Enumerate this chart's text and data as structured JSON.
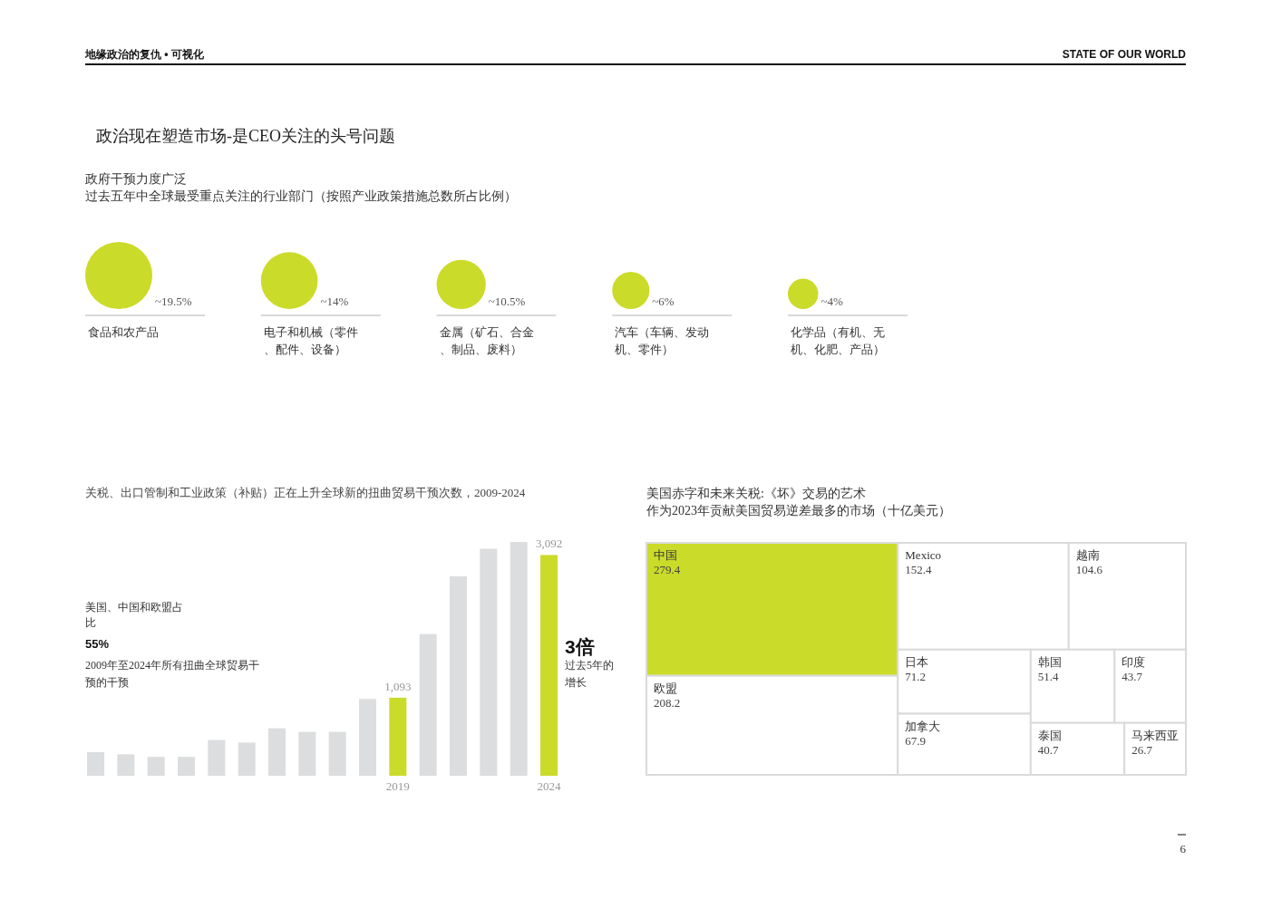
{
  "chart_data": [
    {
      "type": "other",
      "title": "政府干预力度广泛",
      "subtitle": "过去五年中全球最受重点关注的行业部门（按照产业政策措施总数所占比例）",
      "annotations": [
        "地缘政治的复仇 • 可视化",
        "STATE OF OUR WORLD",
        "政治现在塑造市场-是CEO关注的头号问题"
      ],
      "categories": [
        "食品和农产品",
        "电子和机械（零件、配件、设备）",
        "金属（矿石、合金、制品、废料）",
        "汽车（车辆、发动机、零件）",
        "化学品（有机、无机、化肥、产品）"
      ],
      "values": [
        19.5,
        14,
        10.5,
        6,
        4
      ],
      "value_labels": [
        "~19.5%",
        "~14%",
        "~10.5%",
        "~6%",
        "~4%"
      ],
      "color": "#cbdb2a"
    },
    {
      "type": "bar",
      "title": "关税、出口管制和工业政策（补贴）正在上升全球新的扭曲贸易干预次数，2009-2024",
      "categories": [
        null,
        null,
        null,
        null,
        null,
        null,
        null,
        null,
        null,
        null,
        "2019",
        null,
        null,
        null,
        null,
        "2024"
      ],
      "values": [
        330,
        300,
        265,
        265,
        500,
        465,
        665,
        615,
        615,
        1075,
        1093,
        1985,
        2795,
        3180,
        3275,
        3092
      ],
      "colors": [
        "#dcddde",
        "#dcddde",
        "#dcddde",
        "#dcddde",
        "#dcddde",
        "#dcddde",
        "#dcddde",
        "#dcddde",
        "#dcddde",
        "#dcddde",
        "#cbdb2a",
        "#dcddde",
        "#dcddde",
        "#dcddde",
        "#dcddde",
        "#cbdb2a"
      ],
      "value_labels": [
        null,
        null,
        null,
        null,
        null,
        null,
        null,
        null,
        null,
        null,
        "1,093",
        null,
        null,
        null,
        null,
        "3,092"
      ],
      "annotations": [
        "美国、中国和欧盟占比",
        "55%",
        "2009年至2024年所有扭曲全球贸易干预的干预",
        "3倍",
        "过去5年的增长"
      ],
      "tick_labels": "x"
    },
    {
      "type": "other",
      "title": "美国赤字和未来关税:《坏》交易的艺术",
      "subtitle": "作为2023年贡献美国贸易逆差最多的市场（十亿美元）",
      "categories": [
        "中国",
        "欧盟",
        "Mexico",
        "越南",
        "日本",
        "加拿大",
        "韩国",
        "印度",
        "泰国",
        "马来西亚"
      ],
      "values": [
        279.4,
        208.2,
        152.4,
        104.6,
        71.2,
        67.9,
        51.4,
        43.7,
        40.7,
        26.7
      ],
      "colors": [
        "#cbdb2a",
        "#ffffff",
        "#ffffff",
        "#ffffff",
        "#ffffff",
        "#ffffff",
        "#ffffff",
        "#ffffff",
        "#ffffff",
        "#ffffff"
      ],
      "data_labels": true,
      "annotations": [
        "6"
      ]
    }
  ]
}
